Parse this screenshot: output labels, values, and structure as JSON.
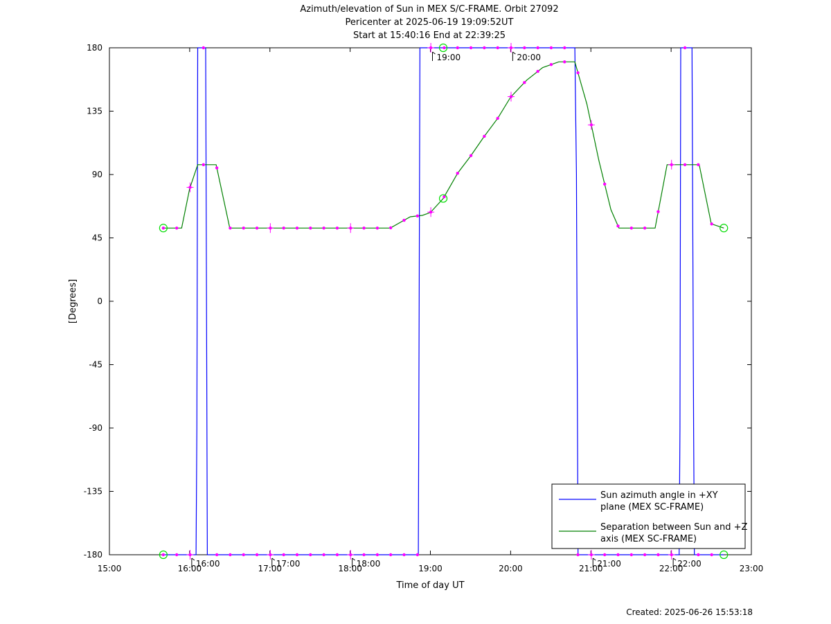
{
  "chart_data": {
    "type": "line",
    "title": "Azimuth/elevation of Sun in MEX S/C-FRAME.  Orbit 27092",
    "subtitle_lines": [
      "Pericenter at 2025-06-19 19:09:52UT",
      "Start at 15:40:16 End at 22:39:25"
    ],
    "xlabel": "Time of day UT",
    "ylabel": "[Degrees]",
    "xlim": [
      15.0,
      23.0
    ],
    "ylim": [
      -180,
      180
    ],
    "x_ticks": [
      "15:00",
      "16:00",
      "17:00",
      "18:00",
      "19:00",
      "20:00",
      "21:00",
      "22:00",
      "23:00"
    ],
    "y_ticks": [
      180,
      135,
      90,
      45,
      0,
      -45,
      -90,
      -135,
      -180
    ],
    "grid": false,
    "legend_position": "bottom-right",
    "hour_annotations_top": [
      "19:00",
      "20:00"
    ],
    "hour_annotations_bottom": [
      "16:00",
      "17:00",
      "18:00",
      "21:00",
      "22:00"
    ],
    "series": [
      {
        "name": "Sun azimuth angle in +XY plane (MEX SC-FRAME)",
        "color": "#0000ff",
        "segments": [
          [
            [
              15.672,
              -180
            ],
            [
              16.08,
              -180
            ],
            [
              16.09,
              -90
            ],
            [
              16.1,
              180
            ]
          ],
          [
            [
              16.1,
              180
            ],
            [
              16.14,
              180
            ],
            [
              16.2,
              180
            ],
            [
              16.22,
              -180
            ]
          ],
          [
            [
              16.22,
              -180
            ],
            [
              17.0,
              -180
            ],
            [
              18.0,
              -180
            ],
            [
              18.85,
              -180
            ],
            [
              18.86,
              0
            ],
            [
              18.87,
              180
            ]
          ],
          [
            [
              18.87,
              180
            ],
            [
              19.0,
              180
            ],
            [
              20.0,
              180
            ],
            [
              20.8,
              180
            ],
            [
              20.82,
              90
            ],
            [
              20.84,
              -180
            ]
          ],
          [
            [
              20.84,
              -180
            ],
            [
              21.5,
              -180
            ],
            [
              22.1,
              -180
            ],
            [
              22.11,
              -90
            ],
            [
              22.12,
              180
            ]
          ],
          [
            [
              22.12,
              180
            ],
            [
              22.16,
              180
            ],
            [
              22.26,
              180
            ],
            [
              22.28,
              -90
            ],
            [
              22.29,
              -180
            ]
          ],
          [
            [
              22.29,
              -180
            ],
            [
              22.657,
              -180
            ]
          ]
        ]
      },
      {
        "name": "Separation between Sun and +Z axis (MEX SC-FRAME)",
        "color": "#008000",
        "points": [
          [
            15.672,
            52
          ],
          [
            15.9,
            52
          ],
          [
            16.0,
            80
          ],
          [
            16.1,
            97
          ],
          [
            16.33,
            97
          ],
          [
            16.5,
            52
          ],
          [
            17.0,
            52
          ],
          [
            18.0,
            52
          ],
          [
            18.5,
            52
          ],
          [
            18.75,
            60
          ],
          [
            18.9,
            61
          ],
          [
            19.0,
            63
          ],
          [
            19.16,
            73
          ],
          [
            19.34,
            91
          ],
          [
            19.5,
            103
          ],
          [
            19.67,
            117
          ],
          [
            19.84,
            130
          ],
          [
            20.0,
            145
          ],
          [
            20.2,
            157
          ],
          [
            20.4,
            166
          ],
          [
            20.6,
            170
          ],
          [
            20.8,
            170
          ],
          [
            20.95,
            140
          ],
          [
            21.1,
            100
          ],
          [
            21.25,
            65
          ],
          [
            21.35,
            52
          ],
          [
            21.8,
            52
          ],
          [
            21.95,
            97
          ],
          [
            22.2,
            97
          ],
          [
            22.35,
            97
          ],
          [
            22.5,
            55
          ],
          [
            22.657,
            52
          ]
        ]
      }
    ]
  },
  "footer": "Created: 2025-06-26 15:53:18",
  "colors": {
    "marker": "#ff00ff",
    "endpoint": "#00dd00"
  }
}
